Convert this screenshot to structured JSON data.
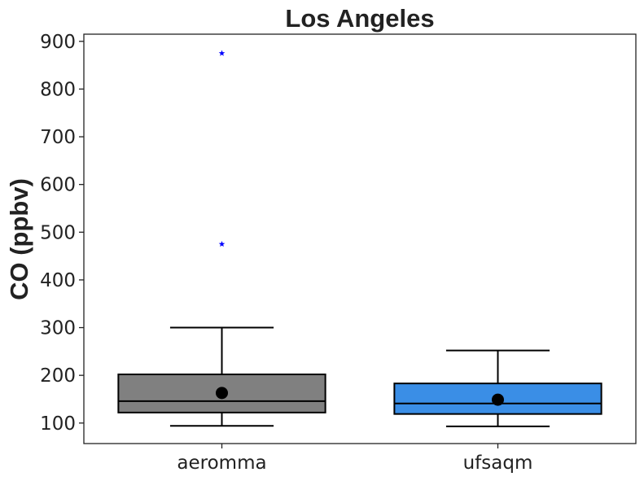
{
  "chart_data": {
    "type": "box",
    "title": "Los Angeles",
    "ylabel": "CO (ppbv)",
    "xlabel": "",
    "ylim": [
      57,
      915
    ],
    "yticks": [
      100,
      200,
      300,
      400,
      500,
      600,
      700,
      800,
      900
    ],
    "grid": false,
    "categories": [
      "aeromma",
      "ufsaqm"
    ],
    "boxes": [
      {
        "category": "aeromma",
        "whisker_low": 94,
        "q1": 122,
        "median": 146,
        "q3": 202,
        "whisker_high": 300,
        "mean": 163,
        "outliers": [
          475,
          875
        ],
        "color": "#808080"
      },
      {
        "category": "ufsaqm",
        "whisker_low": 93,
        "q1": 119,
        "median": 141,
        "q3": 183,
        "whisker_high": 252,
        "mean": 149,
        "outliers": [],
        "color": "#3a8ee6"
      }
    ],
    "outlier_color": "#0000ff",
    "mean_color": "#000000"
  }
}
